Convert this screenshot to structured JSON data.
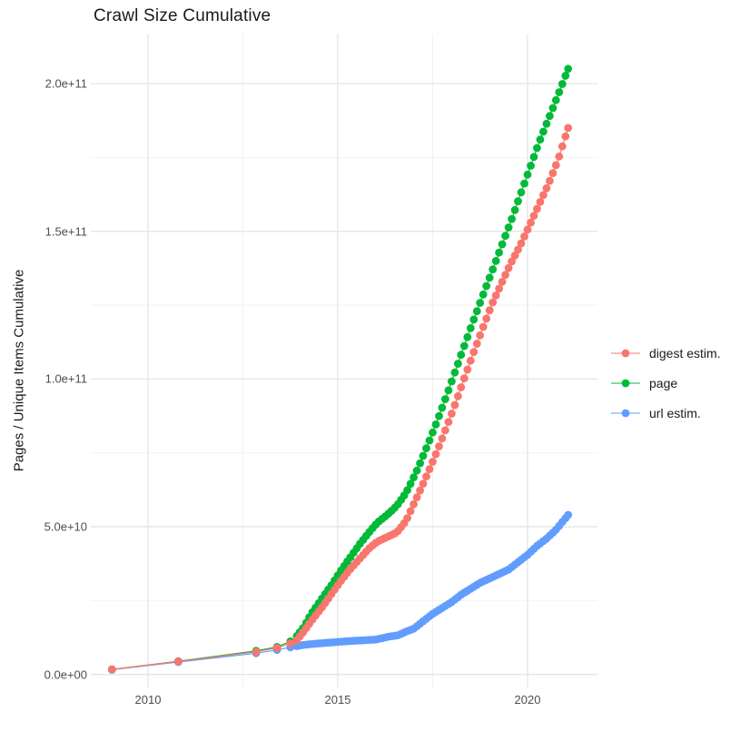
{
  "chart_data": {
    "type": "line",
    "title": "Crawl Size Cumulative",
    "xlabel": "",
    "ylabel": "Pages / Unique Items Cumulative",
    "grid": true,
    "legend_position": "right",
    "point_style": "filled-circle-on-thin-line",
    "x_axis": {
      "range": [
        2008.5,
        2021.8
      ],
      "ticks": [
        {
          "value": 2010,
          "label": "2010"
        },
        {
          "value": 2015,
          "label": "2015"
        },
        {
          "value": 2020,
          "label": "2020"
        }
      ],
      "minor": [
        2012.5,
        2017.5
      ]
    },
    "y_axis": {
      "range": [
        0,
        215000000000.0
      ],
      "ticks": [
        {
          "value": 0,
          "label": "0.0e+00"
        },
        {
          "value": 50000000000.0,
          "label": "5.0e+10"
        },
        {
          "value": 100000000000.0,
          "label": "1.0e+11"
        },
        {
          "value": 150000000000.0,
          "label": "1.5e+11"
        },
        {
          "value": 200000000000.0,
          "label": "2.0e+11"
        }
      ],
      "minor": [
        25000000000.0,
        75000000000.0,
        125000000000.0,
        175000000000.0
      ]
    },
    "series": [
      {
        "name": "digest estim.",
        "color": "#F8766D",
        "points": [
          [
            2009.05,
            1700000000.0
          ],
          [
            2010.8,
            4400000000.0
          ],
          [
            2012.85,
            7700000000.0
          ],
          [
            2013.4,
            9000000000.0
          ],
          [
            2013.75,
            10500000000.0
          ],
          [
            2013.92,
            11600000000.0
          ],
          [
            2014.1,
            14500000000.0
          ],
          [
            2014.3,
            18000000000.0
          ],
          [
            2014.6,
            23000000000.0
          ],
          [
            2014.85,
            27500000000.0
          ],
          [
            2015.1,
            32000000000.0
          ],
          [
            2015.35,
            36000000000.0
          ],
          [
            2015.6,
            39500000000.0
          ],
          [
            2015.85,
            43000000000.0
          ],
          [
            2016.05,
            45000000000.0
          ],
          [
            2016.3,
            46500000000.0
          ],
          [
            2016.55,
            48000000000.0
          ],
          [
            2016.8,
            52000000000.0
          ],
          [
            2017.05,
            59000000000.0
          ],
          [
            2017.3,
            66000000000.0
          ],
          [
            2017.55,
            73500000000.0
          ],
          [
            2017.8,
            81500000000.0
          ],
          [
            2018.05,
            90000000000.0
          ],
          [
            2018.3,
            99000000000.0
          ],
          [
            2018.55,
            108000000000.0
          ],
          [
            2018.8,
            116500000000.0
          ],
          [
            2019.05,
            125000000000.0
          ],
          [
            2019.3,
            132000000000.0
          ],
          [
            2019.55,
            139000000000.0
          ],
          [
            2019.8,
            145000000000.0
          ],
          [
            2020.05,
            152000000000.0
          ],
          [
            2020.3,
            159000000000.0
          ],
          [
            2020.55,
            166000000000.0
          ],
          [
            2020.8,
            174000000000.0
          ],
          [
            2021.07,
            185000000000.0
          ]
        ]
      },
      {
        "name": "page",
        "color": "#00BA38",
        "points": [
          [
            2009.05,
            1700000000.0
          ],
          [
            2010.8,
            4500000000.0
          ],
          [
            2012.85,
            8000000000.0
          ],
          [
            2013.4,
            9300000000.0
          ],
          [
            2013.75,
            11200000000.0
          ],
          [
            2013.92,
            13000000000.0
          ],
          [
            2014.1,
            16000000000.0
          ],
          [
            2014.3,
            20500000000.0
          ],
          [
            2014.6,
            26000000000.0
          ],
          [
            2014.85,
            30500000000.0
          ],
          [
            2015.1,
            35500000000.0
          ],
          [
            2015.35,
            40000000000.0
          ],
          [
            2015.6,
            44500000000.0
          ],
          [
            2015.85,
            48500000000.0
          ],
          [
            2016.05,
            51500000000.0
          ],
          [
            2016.3,
            54000000000.0
          ],
          [
            2016.55,
            57000000000.0
          ],
          [
            2016.8,
            61500000000.0
          ],
          [
            2017.05,
            68000000000.0
          ],
          [
            2017.3,
            75500000000.0
          ],
          [
            2017.55,
            83500000000.0
          ],
          [
            2017.8,
            92000000000.0
          ],
          [
            2018.05,
            101000000000.0
          ],
          [
            2018.3,
            110000000000.0
          ],
          [
            2018.55,
            119000000000.0
          ],
          [
            2018.8,
            127500000000.0
          ],
          [
            2019.05,
            136000000000.0
          ],
          [
            2019.3,
            144500000000.0
          ],
          [
            2019.55,
            153000000000.0
          ],
          [
            2019.8,
            162000000000.0
          ],
          [
            2020.05,
            171000000000.0
          ],
          [
            2020.3,
            180000000000.0
          ],
          [
            2020.55,
            188000000000.0
          ],
          [
            2020.8,
            196000000000.0
          ],
          [
            2021.07,
            205000000000.0
          ]
        ]
      },
      {
        "name": "url estim.",
        "color": "#619CFF",
        "points": [
          [
            2009.05,
            1600000000.0
          ],
          [
            2010.8,
            4200000000.0
          ],
          [
            2012.85,
            7200000000.0
          ],
          [
            2013.4,
            8300000000.0
          ],
          [
            2013.75,
            9200000000.0
          ],
          [
            2013.92,
            9600000000.0
          ],
          [
            2014.1,
            10000000000.0
          ],
          [
            2014.4,
            10400000000.0
          ],
          [
            2014.8,
            10800000000.0
          ],
          [
            2015.2,
            11200000000.0
          ],
          [
            2015.6,
            11500000000.0
          ],
          [
            2016.0,
            11800000000.0
          ],
          [
            2016.35,
            12800000000.0
          ],
          [
            2016.6,
            13300000000.0
          ],
          [
            2016.8,
            14500000000.0
          ],
          [
            2017.0,
            15500000000.0
          ],
          [
            2017.25,
            18000000000.0
          ],
          [
            2017.5,
            20500000000.0
          ],
          [
            2017.75,
            22500000000.0
          ],
          [
            2018.0,
            24500000000.0
          ],
          [
            2018.25,
            27000000000.0
          ],
          [
            2018.5,
            29000000000.0
          ],
          [
            2018.75,
            31000000000.0
          ],
          [
            2019.0,
            32500000000.0
          ],
          [
            2019.25,
            34000000000.0
          ],
          [
            2019.5,
            35500000000.0
          ],
          [
            2019.75,
            38000000000.0
          ],
          [
            2020.0,
            40500000000.0
          ],
          [
            2020.25,
            43500000000.0
          ],
          [
            2020.5,
            46000000000.0
          ],
          [
            2020.75,
            49000000000.0
          ],
          [
            2021.07,
            54000000000.0
          ]
        ]
      }
    ]
  },
  "style": {
    "major_grid_color": "#e5e5e5",
    "minor_grid_color": "#f2f2f2",
    "background": "#ffffff"
  }
}
